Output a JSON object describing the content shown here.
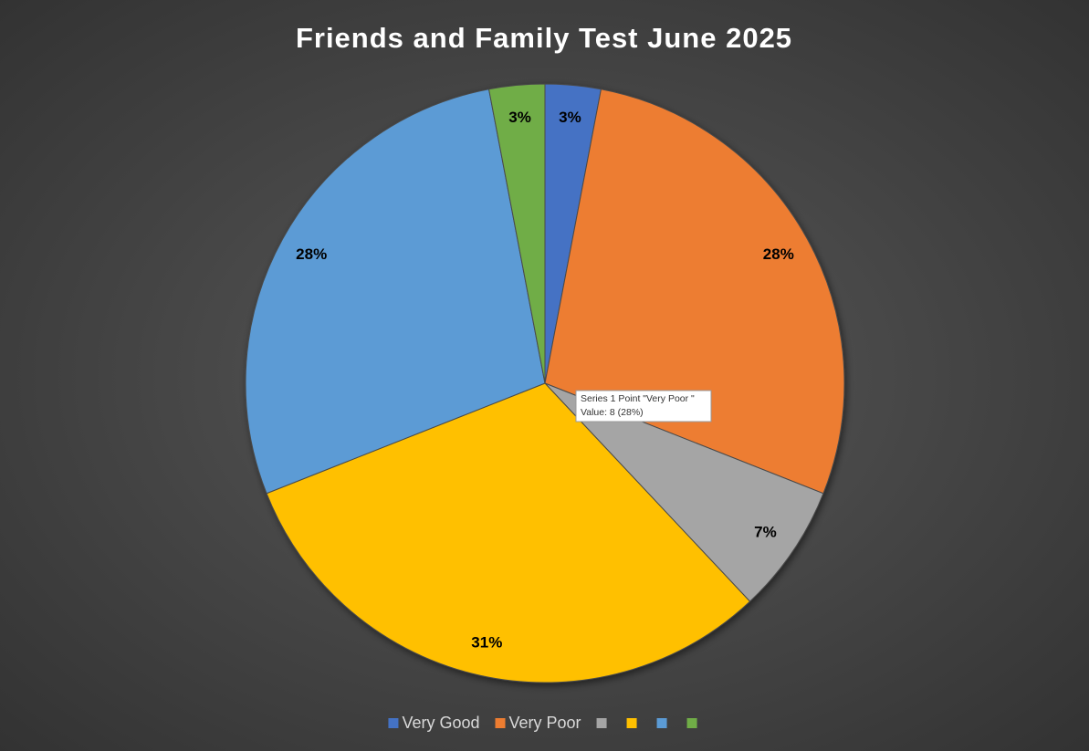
{
  "chart_data": {
    "type": "pie",
    "title": "Friends and Family Test June 2025",
    "categories": [
      "Very Good",
      "Very Poor",
      null,
      null,
      null,
      null
    ],
    "values": [
      3,
      28,
      7,
      31,
      28,
      3
    ],
    "value_labels": [
      "3%",
      "28%",
      "7%",
      "31%",
      "28%",
      "3%"
    ],
    "colors": [
      "#4472c4",
      "#ed7d31",
      "#a5a5a5",
      "#ffc000",
      "#5b9bd5",
      "#70ad47"
    ],
    "legend": "bottom",
    "tooltip": [
      "Series 1 Point \"Very Poor \"",
      "Value: 8 (28%)"
    ]
  }
}
